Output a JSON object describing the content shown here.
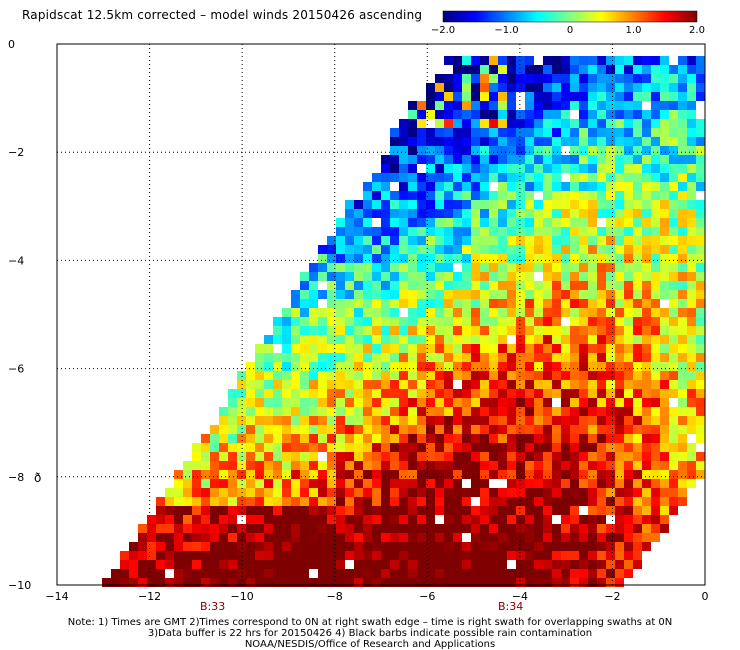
{
  "title": "Rapidscat 12.5km corrected – model winds 20150426 ascending",
  "colorbar": {
    "range": [
      -2.0,
      2.0
    ],
    "tick_labels": [
      "−2.0",
      "−1.0",
      "0",
      "1.0",
      "2.0"
    ],
    "tick_values": [
      -2.0,
      -1.0,
      0,
      1.0,
      2.0
    ],
    "colors": [
      "#00007f",
      "#0000ff",
      "#007fff",
      "#00ffff",
      "#7fff7f",
      "#ffff00",
      "#ff7f00",
      "#ff0000",
      "#7f0000"
    ]
  },
  "map": {
    "x_range": [
      -14,
      0
    ],
    "y_range": [
      -10,
      0
    ],
    "x_tick_labels": [
      "−14",
      "−12",
      "−10",
      "−8",
      "−6",
      "−4",
      "−2",
      "0"
    ],
    "y_tick_labels": [
      "0",
      "−2",
      "−4",
      "−6",
      "−8",
      "−10"
    ],
    "grid": "dotted",
    "swath_labels": [
      "B:33",
      "B:34"
    ],
    "swath_label_color": "#7f0000",
    "marker_symbol": "ð"
  },
  "notes": [
    "Note: 1) Times are GMT 2)Times correspond to 0N at right swath edge – time is right swath for overlapping swaths at 0N",
    "3)Data buffer is 22 hrs for 20150426 4) Black barbs indicate possible rain contamination",
    "NOAA/NESDIS/Office of Research and Applications"
  ]
}
